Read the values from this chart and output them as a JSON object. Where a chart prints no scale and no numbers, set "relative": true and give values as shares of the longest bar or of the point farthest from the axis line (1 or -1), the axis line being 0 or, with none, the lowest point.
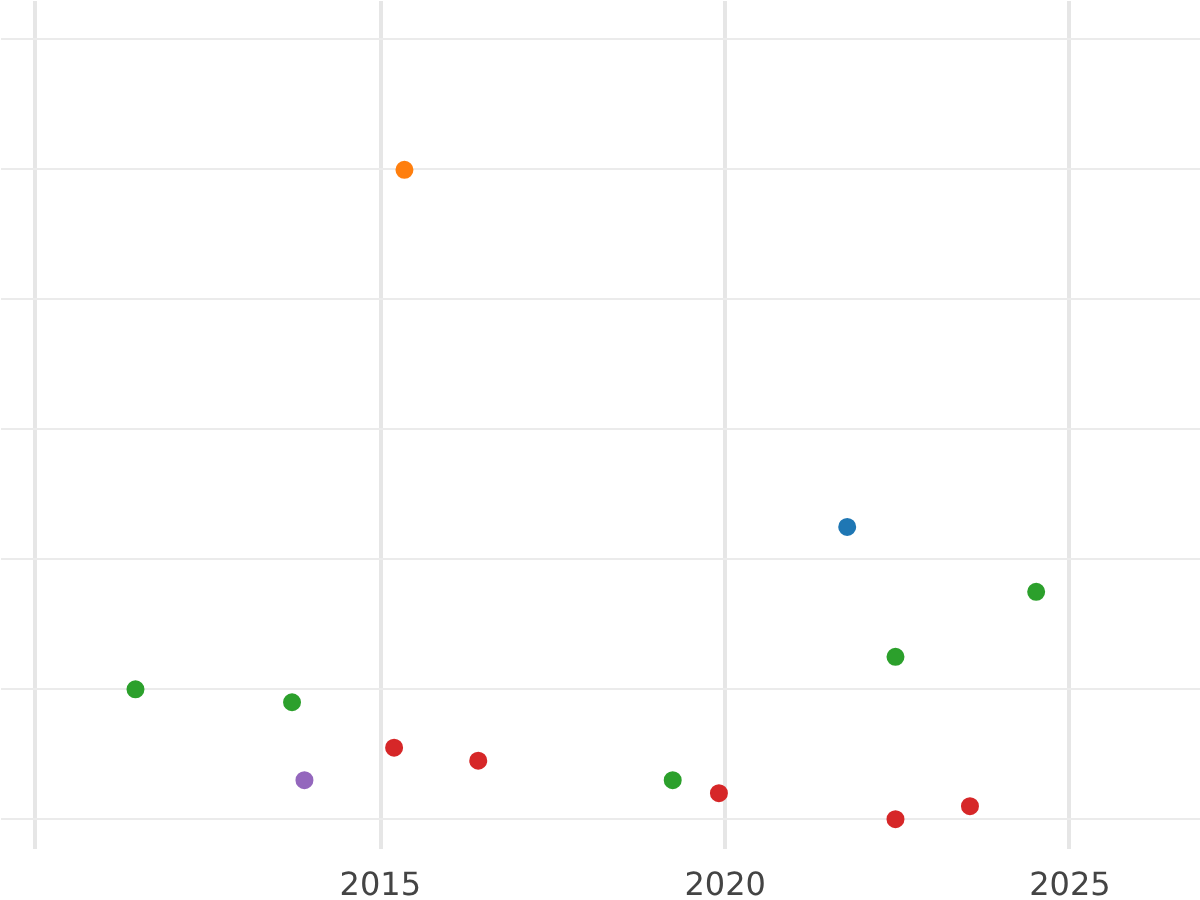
{
  "chart_data": {
    "type": "scatter",
    "relative": true,
    "xlim": [
      2009.5,
      2026.9
    ],
    "xticks": [
      {
        "value": 2010,
        "label": null
      },
      2015,
      2020,
      2025
    ],
    "grid": true,
    "marker": "circle",
    "tick_labels": "x",
    "series": [
      {
        "color": "#ff7f0e",
        "x": [
          2015.35
        ],
        "values": [
          1.0
        ]
      },
      {
        "color": "#1f77b4",
        "x": [
          2021.77
        ],
        "values": [
          0.45
        ]
      },
      {
        "color": "#2ca02c",
        "x": [
          2011.45,
          2013.72,
          2019.24,
          2022.47,
          2024.51
        ],
        "values": [
          0.2,
          0.18,
          0.06,
          0.25,
          0.35
        ]
      },
      {
        "color": "#9467bd",
        "x": [
          2013.9
        ],
        "values": [
          0.06
        ]
      },
      {
        "color": "#d62728",
        "x": [
          2015.2,
          2016.42,
          2019.91,
          2022.47,
          2023.55
        ],
        "values": [
          0.11,
          0.09,
          0.04,
          0.0,
          0.02
        ]
      }
    ]
  }
}
